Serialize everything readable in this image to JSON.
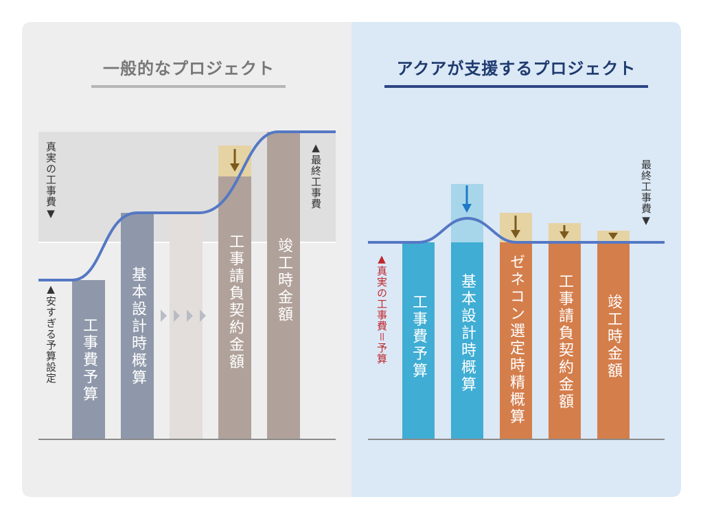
{
  "colors": {
    "left_bg": "#eeeeee",
    "right_bg": "#dbe8f6",
    "left_title": "#777777",
    "right_title": "#1e3a6e",
    "gray_bar": "#8f98aa",
    "light_bar": "#e3dedb",
    "taupe_bar": "#b0a29a",
    "cyan_bar": "#3fadd4",
    "orange_bar": "#d47e4c",
    "curve": "#5578c4",
    "red_text": "#c0282e",
    "beige_box": "#e6d3a3",
    "brown_arrow": "#7b5a1e",
    "blue_arrow": "#1f78c8"
  },
  "left": {
    "title": "一般的なプロジェクト",
    "true_cost_label": "真実の工事費▼",
    "cheap_budget_label": "▲安すぎる予算設定",
    "final_cost_label": "▲最終工事費",
    "bars": [
      "工事費予算",
      "基本設計時概算",
      "",
      "工事請負契約金額",
      "竣工時金額"
    ],
    "chevrons": "▶▶▶▶"
  },
  "right": {
    "title": "アクアが支援するプロジェクト",
    "budget_label": "▲真実の工事費＝予算",
    "final_cost_label": "最終工事費▼",
    "bars": [
      "工事費予算",
      "基本設計時概算",
      "ゼネコン選定時精概算",
      "工事請負契約金額",
      "竣工時金額"
    ]
  },
  "icons": {
    "down_arrow": "down-arrow-icon",
    "chevron": "chevron-right-icon"
  }
}
